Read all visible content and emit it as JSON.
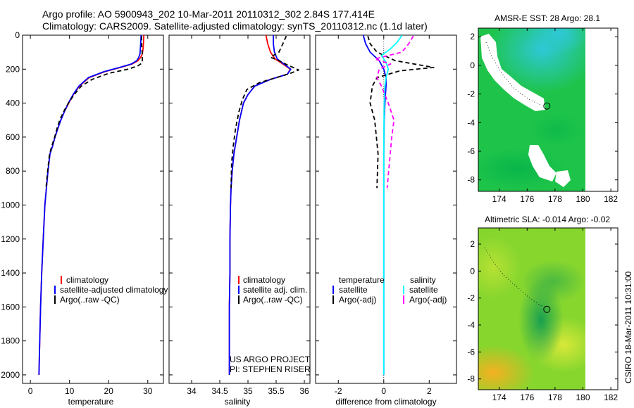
{
  "header": {
    "line1": "Argo profile: AO 5900943_202 10-Mar-2011 20110312_302 2.84S 177.414E",
    "line2": "Climatology: CARS2009. Satellite-adjusted climatology: synTS_20110312.nc (1.1d later)"
  },
  "colors": {
    "clim": "#ff0000",
    "sat": "#0000ff",
    "argo": "#000000",
    "sat_s": "#00ffff",
    "argo_s": "#ff00ff",
    "land": "#ffffff"
  },
  "credits": {
    "project": "US ARGO PROJECT",
    "pi": "PI: STEPHEN RISER",
    "stamp": "CSIRO 18-Mar-2011 10:31:00"
  },
  "chart_data": [
    {
      "type": "line",
      "panel": "temperature",
      "xlabel": "temperature",
      "ylabel": "",
      "xlim": [
        -2,
        34
      ],
      "ylim": [
        2050,
        0
      ],
      "y_inverted": true,
      "xticks": [
        0,
        10,
        20,
        30
      ],
      "yticks": [
        0,
        200,
        400,
        600,
        800,
        1000,
        1200,
        1400,
        1600,
        1800,
        2000
      ],
      "legend": [
        "climatology",
        "satellite-adjusted climatology",
        "Argo(..raw -QC)"
      ],
      "series": [
        {
          "name": "climatology",
          "style": "clim",
          "x": [
            29.0,
            28.9,
            28.8,
            28.6,
            28.2,
            27.5,
            26.0,
            23.0,
            19.0,
            15.0,
            12.5,
            11.0,
            9.8,
            8.7,
            7.8,
            7.0,
            6.3,
            5.7,
            5.0,
            4.5,
            4.1,
            3.7,
            3.3,
            2.9,
            2.6,
            2.4,
            2.2
          ],
          "y": [
            0,
            40,
            80,
            110,
            130,
            150,
            170,
            190,
            215,
            250,
            300,
            350,
            400,
            450,
            500,
            550,
            600,
            650,
            700,
            800,
            900,
            1000,
            1200,
            1400,
            1600,
            1800,
            2000
          ]
        },
        {
          "name": "satellite-adjusted climatology",
          "style": "sat",
          "x": [
            28.3,
            28.2,
            28.1,
            28.0,
            27.7,
            27.2,
            25.8,
            22.8,
            18.8,
            14.8,
            12.4,
            10.9,
            9.7,
            8.7,
            7.8,
            7.0,
            6.3,
            5.7,
            5.0,
            4.5,
            4.1,
            3.7,
            3.3,
            2.9,
            2.6,
            2.4,
            2.2
          ],
          "y": [
            0,
            40,
            80,
            110,
            130,
            150,
            170,
            190,
            215,
            250,
            300,
            350,
            400,
            450,
            500,
            550,
            600,
            650,
            700,
            800,
            900,
            1000,
            1200,
            1400,
            1600,
            1800,
            2000
          ]
        },
        {
          "name": "Argo(..raw -QC)",
          "style": "argo",
          "x": [
            28.4,
            28.4,
            28.5,
            28.6,
            28.6,
            28.5,
            27.5,
            25.0,
            20.0,
            15.8,
            13.0,
            11.2,
            9.7,
            8.5,
            7.5,
            6.8,
            6.2,
            5.5,
            4.9,
            4.4,
            4.0
          ],
          "y": [
            5,
            40,
            80,
            120,
            150,
            165,
            180,
            200,
            225,
            260,
            300,
            350,
            400,
            450,
            500,
            550,
            600,
            650,
            700,
            800,
            900
          ]
        }
      ]
    },
    {
      "type": "line",
      "panel": "salinity",
      "xlabel": "salinity",
      "ylabel": "",
      "xlim": [
        33.6,
        36.1
      ],
      "ylim": [
        2050,
        0
      ],
      "y_inverted": true,
      "xticks": [
        34,
        34.5,
        35,
        35.5,
        36
      ],
      "legend": [
        "climatology",
        "satellite adj. clim.",
        "Argo(..raw -QC)"
      ],
      "series": [
        {
          "name": "climatology",
          "style": "clim",
          "x": [
            35.32,
            35.35,
            35.4,
            35.48,
            35.62,
            35.75,
            35.7,
            35.4,
            35.12,
            35.0,
            34.92,
            34.85,
            34.8,
            34.75,
            34.72,
            34.7,
            34.69,
            34.68,
            34.68,
            34.67,
            34.67,
            34.67,
            34.67
          ],
          "y": [
            0,
            50,
            100,
            140,
            170,
            200,
            230,
            260,
            300,
            350,
            400,
            500,
            600,
            700,
            800,
            900,
            1000,
            1200,
            1400,
            1600,
            1800,
            1900,
            2000
          ]
        },
        {
          "name": "satellite adj. clim.",
          "style": "sat",
          "x": [
            35.45,
            35.45,
            35.47,
            35.52,
            35.64,
            35.76,
            35.7,
            35.4,
            35.12,
            35.0,
            34.92,
            34.85,
            34.8,
            34.75,
            34.72,
            34.7,
            34.69,
            34.68,
            34.68,
            34.67,
            34.67,
            34.67,
            34.67
          ],
          "y": [
            0,
            50,
            100,
            140,
            170,
            200,
            230,
            260,
            300,
            350,
            400,
            500,
            600,
            700,
            800,
            900,
            1000,
            1200,
            1400,
            1600,
            1800,
            1900,
            2000
          ]
        },
        {
          "name": "Argo(..raw -QC)",
          "style": "argo",
          "x": [
            35.68,
            35.62,
            35.55,
            35.4,
            35.55,
            35.7,
            35.9,
            35.75,
            35.5,
            35.2,
            34.98,
            34.9,
            34.84,
            34.78,
            34.74,
            34.71,
            34.7
          ],
          "y": [
            5,
            50,
            100,
            130,
            150,
            175,
            205,
            225,
            250,
            280,
            320,
            380,
            450,
            550,
            650,
            750,
            900
          ]
        }
      ]
    },
    {
      "type": "line",
      "panel": "difference",
      "xlabel": "difference from climatology",
      "ylabel": "",
      "xlim": [
        -3,
        3.2
      ],
      "ylim": [
        2050,
        0
      ],
      "y_inverted": true,
      "xticks": [
        -2,
        0,
        2
      ],
      "legend": [
        "temperature",
        "salinity",
        "satellite",
        "satellite",
        "Argo(-adj)",
        "Argo(-adj)"
      ],
      "series": [
        {
          "name": "temperature satellite",
          "style": "sat",
          "x": [
            -0.9,
            -0.8,
            -0.6,
            -0.2,
            0.0,
            0.1,
            0.1,
            0.05,
            0.02,
            0.0,
            0.0,
            0.0
          ],
          "y": [
            0,
            50,
            100,
            150,
            200,
            250,
            300,
            400,
            500,
            700,
            1000,
            2000
          ]
        },
        {
          "name": "temperature Argo(-adj)",
          "style": "argo",
          "x": [
            -0.7,
            -0.6,
            -0.3,
            0.5,
            2.2,
            0.7,
            -0.3,
            -0.5,
            -0.6,
            -0.4,
            -0.25,
            -0.3
          ],
          "y": [
            5,
            50,
            100,
            150,
            190,
            210,
            250,
            300,
            400,
            500,
            700,
            900
          ]
        },
        {
          "name": "salinity satellite",
          "style": "sat_s",
          "x": [
            0.8,
            0.6,
            0.3,
            -0.1,
            0.1,
            0.2,
            0.1,
            0.05,
            0.02,
            0.01,
            0.0,
            0.0,
            0.0
          ],
          "y": [
            0,
            40,
            80,
            120,
            160,
            200,
            250,
            300,
            400,
            500,
            700,
            1000,
            2000
          ]
        },
        {
          "name": "salinity Argo(-adj)",
          "style": "argo_s",
          "x": [
            1.3,
            1.1,
            0.8,
            -0.4,
            0.3,
            -0.2,
            -0.3,
            -0.1,
            0.2,
            0.45,
            0.35,
            0.25,
            0.15
          ],
          "y": [
            5,
            50,
            100,
            140,
            170,
            200,
            250,
            300,
            400,
            500,
            600,
            750,
            900
          ]
        }
      ]
    },
    {
      "type": "heatmap",
      "panel": "sst-map",
      "title": "AMSR-E SST: 28  Argo: 28.1",
      "xlim": [
        172.5,
        182.5
      ],
      "ylim": [
        -8.8,
        2.6
      ],
      "xticks": [
        174,
        176,
        178,
        180,
        182
      ],
      "yticks": [
        -8,
        -6,
        -4,
        -2,
        0,
        2
      ],
      "data_lon_range": [
        172.5,
        180.0
      ],
      "profile_location": {
        "lon": 177.414,
        "lat": -2.84
      }
    },
    {
      "type": "heatmap",
      "panel": "sla-map",
      "title": "Altimetric SLA: -0.014  Argo: -0.02",
      "xlim": [
        172.5,
        182.5
      ],
      "ylim": [
        -8.8,
        3.2
      ],
      "xticks": [
        174,
        176,
        178,
        180,
        182
      ],
      "yticks": [
        -8,
        -6,
        -4,
        -2,
        0,
        2
      ],
      "data_lon_range": [
        172.5,
        180.0
      ],
      "profile_location": {
        "lon": 177.414,
        "lat": -2.84
      }
    }
  ]
}
